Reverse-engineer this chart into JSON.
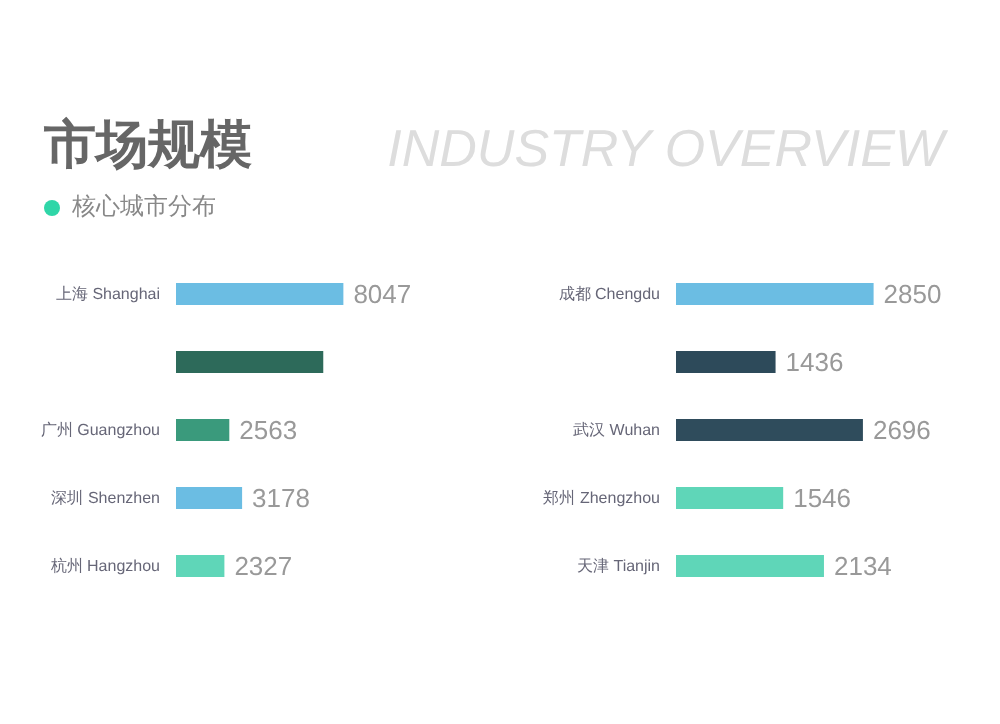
{
  "chart_data": [
    {
      "type": "bar",
      "orientation": "horizontal",
      "title": "市场规模",
      "subtitle": "核心城市分布",
      "annotations": [
        "INDUSTRY OVERVIEW"
      ],
      "categories": [
        "上海 Shanghai",
        null,
        "广州 Guangzhou",
        "深圳 Shenzhen",
        "杭州 Hangzhou"
      ],
      "values": [
        8047,
        7080,
        2563,
        3178,
        2327
      ],
      "colors": [
        "#6bbde3",
        "#2d6a5a",
        "#3a9a7c",
        "#6bbde3",
        "#5fd6b8"
      ],
      "value_labels": [
        "8047",
        null,
        "2563",
        "3178",
        "2327"
      ]
    },
    {
      "type": "bar",
      "orientation": "horizontal",
      "categories": [
        "成都 Chengdu",
        null,
        "武汉 Wuhan",
        "郑州 Zhengzhou",
        "天津 Tianjin"
      ],
      "values": [
        2850,
        1436,
        2696,
        1546,
        2134
      ],
      "colors": [
        "#6bbde3",
        "#2d4a5a",
        "#2f4c5c",
        "#5fd6b8",
        "#5fd6b8"
      ],
      "data_labels": true
    }
  ]
}
